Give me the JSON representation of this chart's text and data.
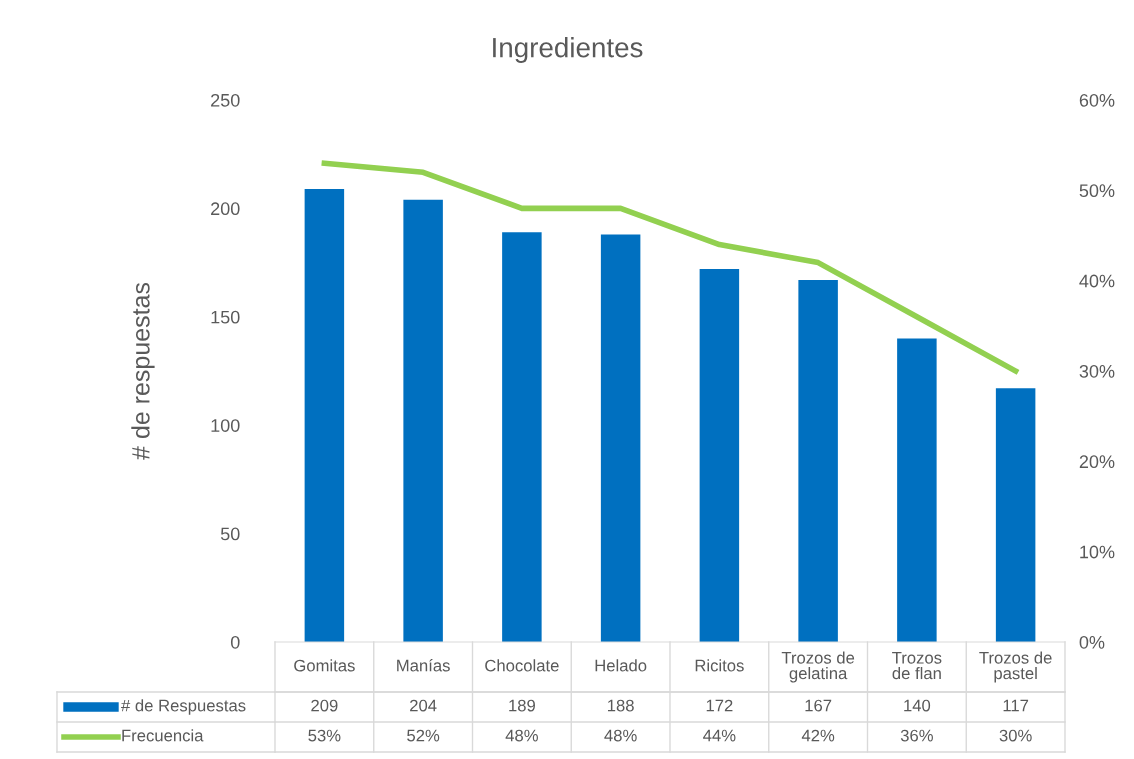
{
  "chart_data": {
    "type": "bar",
    "title": "Ingredientes",
    "ylabel": "# de respuestas",
    "categories": [
      "Gomitas",
      "Manías",
      "Chocolate",
      "Helado",
      "Ricitos",
      "Trozos de gelatina",
      "Trozos de flan",
      "Trozos de pastel"
    ],
    "series": [
      {
        "name": "# de Respuestas",
        "color": "#0070c0",
        "values": [
          209,
          204,
          189,
          188,
          172,
          167,
          140,
          117
        ]
      },
      {
        "name": "Frecuencia",
        "type": "line",
        "axis": "y2",
        "color": "#92d050",
        "values": [
          53,
          52,
          48,
          48,
          44,
          42,
          36,
          30
        ],
        "value_labels": [
          "53%",
          "52%",
          "48%",
          "48%",
          "44%",
          "42%",
          "36%",
          "30%"
        ]
      }
    ],
    "ylim": [
      0,
      250
    ],
    "yticks": [
      0,
      50,
      100,
      150,
      200,
      250
    ],
    "y2lim": [
      0,
      60
    ],
    "y2ticks": [
      {
        "value": 0,
        "label": "0%"
      },
      {
        "value": 10,
        "label": "10%"
      },
      {
        "value": 20,
        "label": "20%"
      },
      {
        "value": 30,
        "label": "30%"
      },
      {
        "value": 40,
        "label": "40%"
      },
      {
        "value": 50,
        "label": "50%"
      },
      {
        "value": 60,
        "label": "60%"
      }
    ],
    "data_labels": true,
    "grid": false,
    "legend": "bottom left",
    "marker": "none",
    "line_style": "solid"
  }
}
